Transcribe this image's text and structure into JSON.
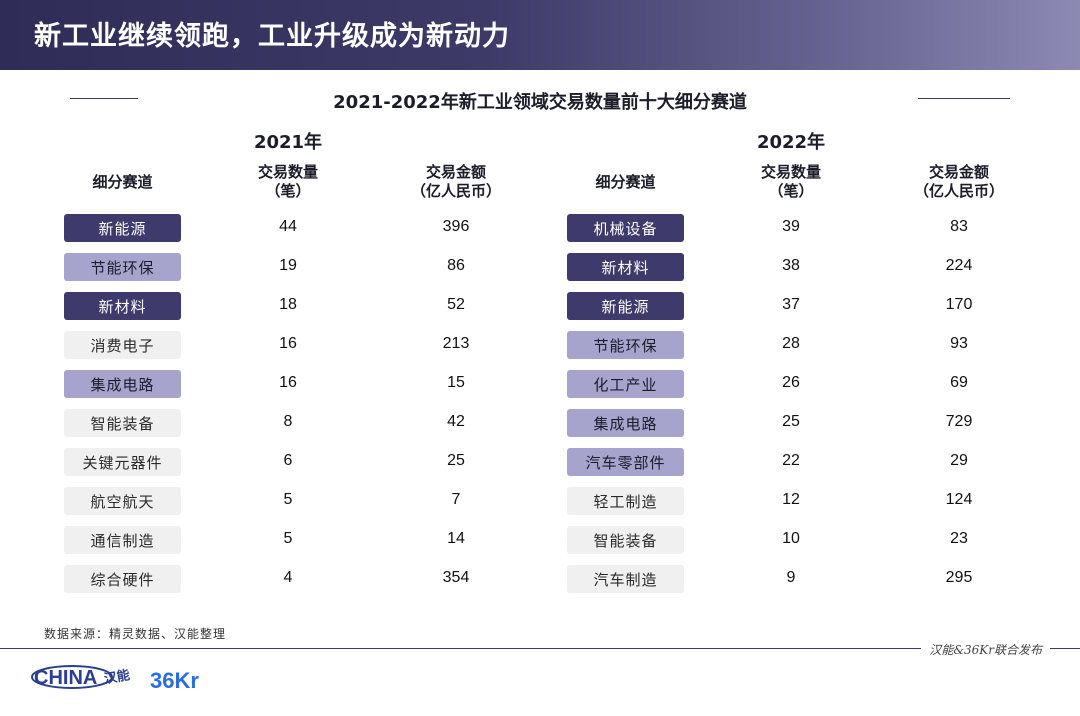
{
  "header": {
    "title": "新工业继续领跑，工业升级成为新动力"
  },
  "main_title": "2021-2022年新工业领域交易数量前十大细分赛道",
  "colors": {
    "dark": "#3e3a6b",
    "mid": "#a6a3cc",
    "light": "#f0f0f0"
  },
  "tables": [
    {
      "year": "2021年",
      "headers": {
        "track": "细分赛道",
        "count_l1": "交易数量",
        "count_l2": "（笔）",
        "amount_l1": "交易金额",
        "amount_l2": "（亿人民币）"
      },
      "rows": [
        {
          "name": "新能源",
          "tone": "dark",
          "count": "44",
          "amount": "396"
        },
        {
          "name": "节能环保",
          "tone": "mid",
          "count": "19",
          "amount": "86"
        },
        {
          "name": "新材料",
          "tone": "dark",
          "count": "18",
          "amount": "52"
        },
        {
          "name": "消费电子",
          "tone": "light",
          "count": "16",
          "amount": "213"
        },
        {
          "name": "集成电路",
          "tone": "mid",
          "count": "16",
          "amount": "15"
        },
        {
          "name": "智能装备",
          "tone": "light",
          "count": "8",
          "amount": "42"
        },
        {
          "name": "关键元器件",
          "tone": "light",
          "count": "6",
          "amount": "25"
        },
        {
          "name": "航空航天",
          "tone": "light",
          "count": "5",
          "amount": "7"
        },
        {
          "name": "通信制造",
          "tone": "light",
          "count": "5",
          "amount": "14"
        },
        {
          "name": "综合硬件",
          "tone": "light",
          "count": "4",
          "amount": "354"
        }
      ]
    },
    {
      "year": "2022年",
      "headers": {
        "track": "细分赛道",
        "count_l1": "交易数量",
        "count_l2": "（笔）",
        "amount_l1": "交易金额",
        "amount_l2": "（亿人民币）"
      },
      "rows": [
        {
          "name": "机械设备",
          "tone": "dark",
          "count": "39",
          "amount": "83"
        },
        {
          "name": "新材料",
          "tone": "dark",
          "count": "38",
          "amount": "224"
        },
        {
          "name": "新能源",
          "tone": "dark",
          "count": "37",
          "amount": "170"
        },
        {
          "name": "节能环保",
          "tone": "mid",
          "count": "28",
          "amount": "93"
        },
        {
          "name": "化工产业",
          "tone": "mid",
          "count": "26",
          "amount": "69"
        },
        {
          "name": "集成电路",
          "tone": "mid",
          "count": "25",
          "amount": "729"
        },
        {
          "name": "汽车零部件",
          "tone": "mid",
          "count": "22",
          "amount": "29"
        },
        {
          "name": "轻工制造",
          "tone": "light",
          "count": "12",
          "amount": "124"
        },
        {
          "name": "智能装备",
          "tone": "light",
          "count": "10",
          "amount": "23"
        },
        {
          "name": "汽车制造",
          "tone": "light",
          "count": "9",
          "amount": "295"
        }
      ]
    }
  ],
  "source": "数据来源：精灵数据、汉能整理",
  "footer": {
    "note": "汉能&36Kr联合发布",
    "logo_china": "CHINA汉能",
    "logo_36kr": "36Kr"
  }
}
